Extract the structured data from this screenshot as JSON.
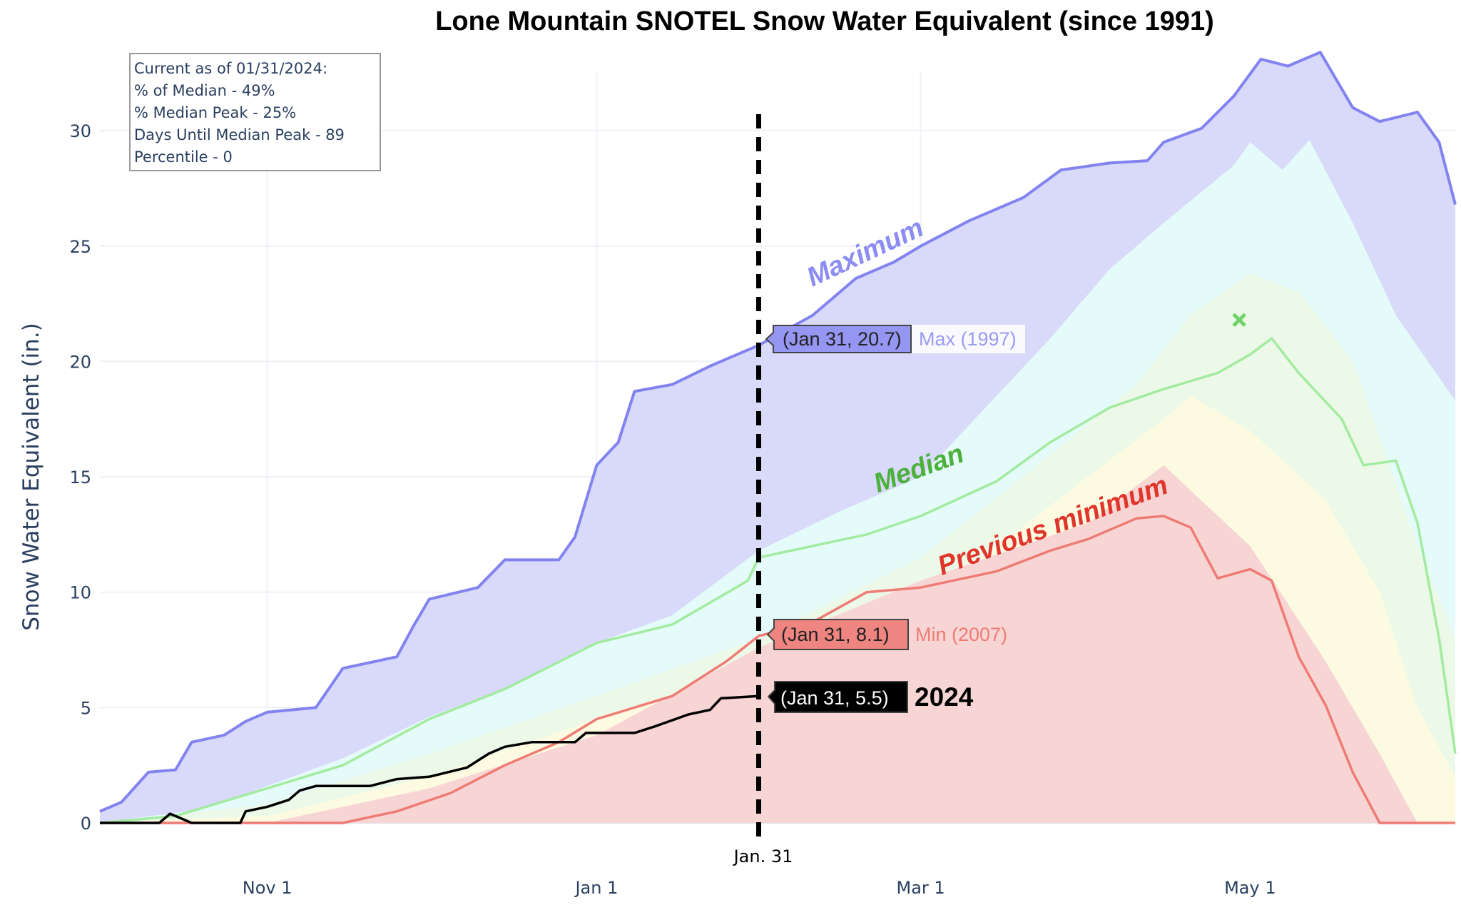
{
  "chart_data": {
    "type": "area",
    "title": "Lone Mountain SNOTEL Snow Water Equivalent (since 1991)",
    "xlabel": "",
    "ylabel": "Snow Water Equivalent (in.)",
    "xlim": [
      "2023-10-01",
      "2024-06-08"
    ],
    "ylim": [
      0,
      34
    ],
    "y_ticks": [
      0,
      5,
      10,
      15,
      20,
      25,
      30
    ],
    "x_ticks": [
      {
        "date": "2023-11-01",
        "label": "Nov 1"
      },
      {
        "date": "2024-01-01",
        "label": "Jan 1"
      },
      {
        "date": "2024-03-01",
        "label": "Mar 1"
      },
      {
        "date": "2024-05-01",
        "label": "May 1"
      }
    ],
    "grid": true,
    "current_marker": {
      "date": "2024-01-31",
      "label": "Jan. 31"
    },
    "info_box": [
      "Current as of 01/31/2024:",
      "% of Median - 49%",
      "% Median Peak - 25%",
      "Days Until Median Peak - 89",
      "Percentile - 0"
    ],
    "colors": {
      "max_line": "#8383f0",
      "max_fill": "#d9d9f9",
      "band_upper": "#e5fbfa",
      "band_mid": "#edf9e8",
      "band_lower": "#fcfbe1",
      "band_low": "#f8d5d5",
      "median_line": "#a3eba0",
      "min_line": "#ee7b74",
      "current_line": "#000000",
      "median_label": "#4cb03c",
      "min_label": "#e0352b"
    },
    "bands": [
      {
        "key": "upper",
        "points": [
          [
            "2023-10-01",
            0
          ],
          [
            "2023-10-20",
            0.6
          ],
          [
            "2023-11-01",
            1.6
          ],
          [
            "2023-11-15",
            2.8
          ],
          [
            "2023-12-01",
            4.6
          ],
          [
            "2023-12-15",
            5.8
          ],
          [
            "2024-01-01",
            7.8
          ],
          [
            "2024-01-15",
            9.0
          ],
          [
            "2024-01-31",
            11.8
          ],
          [
            "2024-02-15",
            13.5
          ],
          [
            "2024-03-01",
            15.0
          ],
          [
            "2024-03-15",
            18.5
          ],
          [
            "2024-03-25",
            21.0
          ],
          [
            "2024-04-05",
            24.0
          ],
          [
            "2024-04-15",
            26.0
          ],
          [
            "2024-04-28",
            28.5
          ],
          [
            "2024-05-01",
            29.5
          ],
          [
            "2024-05-07",
            28.3
          ],
          [
            "2024-05-12",
            29.6
          ],
          [
            "2024-05-20",
            26.0
          ],
          [
            "2024-05-28",
            22.0
          ],
          [
            "2024-06-08",
            18.3
          ]
        ]
      },
      {
        "key": "mid",
        "points": [
          [
            "2023-10-01",
            0
          ],
          [
            "2023-11-01",
            0.8
          ],
          [
            "2023-12-01",
            3.0
          ],
          [
            "2024-01-01",
            5.5
          ],
          [
            "2024-01-31",
            8.0
          ],
          [
            "2024-03-01",
            11.5
          ],
          [
            "2024-03-20",
            15.0
          ],
          [
            "2024-04-10",
            19.0
          ],
          [
            "2024-04-20",
            22.0
          ],
          [
            "2024-05-01",
            23.8
          ],
          [
            "2024-05-10",
            23.0
          ],
          [
            "2024-05-20",
            20.0
          ],
          [
            "2024-06-01",
            12.0
          ],
          [
            "2024-06-08",
            8.0
          ]
        ]
      },
      {
        "key": "lower",
        "points": [
          [
            "2023-10-01",
            0
          ],
          [
            "2023-11-01",
            0.3
          ],
          [
            "2023-12-01",
            2.0
          ],
          [
            "2024-01-01",
            4.5
          ],
          [
            "2024-01-31",
            6.5
          ],
          [
            "2024-03-01",
            9.5
          ],
          [
            "2024-04-01",
            15.0
          ],
          [
            "2024-04-15",
            17.5
          ],
          [
            "2024-04-20",
            18.5
          ],
          [
            "2024-05-01",
            17.0
          ],
          [
            "2024-05-15",
            14.0
          ],
          [
            "2024-05-25",
            10.0
          ],
          [
            "2024-06-01",
            5.0
          ],
          [
            "2024-06-08",
            2.0
          ]
        ]
      },
      {
        "key": "low",
        "points": [
          [
            "2023-10-01",
            0
          ],
          [
            "2023-11-01",
            0
          ],
          [
            "2023-12-01",
            1.5
          ],
          [
            "2024-01-01",
            3.8
          ],
          [
            "2024-01-31",
            7.6
          ],
          [
            "2024-03-01",
            10.5
          ],
          [
            "2024-04-01",
            13.0
          ],
          [
            "2024-04-15",
            15.5
          ],
          [
            "2024-05-01",
            12.0
          ],
          [
            "2024-05-15",
            7.0
          ],
          [
            "2024-05-25",
            3.0
          ],
          [
            "2024-06-01",
            0
          ],
          [
            "2024-06-08",
            0
          ]
        ]
      }
    ],
    "series": [
      {
        "key": "max",
        "name": "Maximum",
        "points": [
          [
            "2023-10-01",
            0.5
          ],
          [
            "2023-10-05",
            0.9
          ],
          [
            "2023-10-10",
            2.2
          ],
          [
            "2023-10-15",
            2.3
          ],
          [
            "2023-10-18",
            3.5
          ],
          [
            "2023-10-24",
            3.8
          ],
          [
            "2023-10-28",
            4.4
          ],
          [
            "2023-11-01",
            4.8
          ],
          [
            "2023-11-10",
            5.0
          ],
          [
            "2023-11-15",
            6.7
          ],
          [
            "2023-11-25",
            7.2
          ],
          [
            "2023-11-28",
            8.5
          ],
          [
            "2023-12-01",
            9.7
          ],
          [
            "2023-12-10",
            10.2
          ],
          [
            "2023-12-15",
            11.4
          ],
          [
            "2023-12-25",
            11.4
          ],
          [
            "2023-12-28",
            12.4
          ],
          [
            "2024-01-01",
            15.5
          ],
          [
            "2024-01-05",
            16.5
          ],
          [
            "2024-01-08",
            18.7
          ],
          [
            "2024-01-15",
            19.0
          ],
          [
            "2024-01-22",
            19.8
          ],
          [
            "2024-01-31",
            20.7
          ],
          [
            "2024-02-10",
            22.0
          ],
          [
            "2024-02-18",
            23.6
          ],
          [
            "2024-02-25",
            24.3
          ],
          [
            "2024-03-01",
            25.0
          ],
          [
            "2024-03-10",
            26.1
          ],
          [
            "2024-03-20",
            27.1
          ],
          [
            "2024-03-27",
            28.3
          ],
          [
            "2024-04-05",
            28.6
          ],
          [
            "2024-04-12",
            28.7
          ],
          [
            "2024-04-15",
            29.5
          ],
          [
            "2024-04-22",
            30.1
          ],
          [
            "2024-04-28",
            31.5
          ],
          [
            "2024-05-03",
            33.1
          ],
          [
            "2024-05-08",
            32.8
          ],
          [
            "2024-05-14",
            33.4
          ],
          [
            "2024-05-20",
            31.0
          ],
          [
            "2024-05-25",
            30.4
          ],
          [
            "2024-06-01",
            30.8
          ],
          [
            "2024-06-05",
            29.5
          ],
          [
            "2024-06-08",
            26.8
          ]
        ]
      },
      {
        "key": "median",
        "name": "Median",
        "points": [
          [
            "2023-10-01",
            0
          ],
          [
            "2023-10-15",
            0.3
          ],
          [
            "2023-11-01",
            1.5
          ],
          [
            "2023-11-15",
            2.5
          ],
          [
            "2023-12-01",
            4.5
          ],
          [
            "2023-12-15",
            5.8
          ],
          [
            "2024-01-01",
            7.8
          ],
          [
            "2024-01-15",
            8.6
          ],
          [
            "2024-01-29",
            10.5
          ],
          [
            "2024-01-31",
            11.5
          ],
          [
            "2024-02-10",
            12.0
          ],
          [
            "2024-02-20",
            12.5
          ],
          [
            "2024-03-01",
            13.3
          ],
          [
            "2024-03-15",
            14.8
          ],
          [
            "2024-03-25",
            16.5
          ],
          [
            "2024-04-05",
            18.0
          ],
          [
            "2024-04-15",
            18.8
          ],
          [
            "2024-04-25",
            19.5
          ],
          [
            "2024-05-01",
            20.3
          ],
          [
            "2024-05-05",
            21.0
          ],
          [
            "2024-05-10",
            19.5
          ],
          [
            "2024-05-18",
            17.5
          ],
          [
            "2024-05-22",
            15.5
          ],
          [
            "2024-05-28",
            15.7
          ],
          [
            "2024-06-01",
            13.0
          ],
          [
            "2024-06-05",
            8.0
          ],
          [
            "2024-06-08",
            3.0
          ]
        ]
      },
      {
        "key": "min",
        "name": "Previous minimum",
        "points": [
          [
            "2023-10-01",
            0
          ],
          [
            "2023-11-15",
            0
          ],
          [
            "2023-11-25",
            0.5
          ],
          [
            "2023-12-05",
            1.3
          ],
          [
            "2023-12-15",
            2.5
          ],
          [
            "2023-12-25",
            3.5
          ],
          [
            "2024-01-01",
            4.5
          ],
          [
            "2024-01-15",
            5.5
          ],
          [
            "2024-01-25",
            7.0
          ],
          [
            "2024-01-31",
            8.1
          ],
          [
            "2024-02-10",
            8.7
          ],
          [
            "2024-02-20",
            10.0
          ],
          [
            "2024-03-01",
            10.2
          ],
          [
            "2024-03-15",
            10.9
          ],
          [
            "2024-03-25",
            11.8
          ],
          [
            "2024-04-01",
            12.3
          ],
          [
            "2024-04-10",
            13.2
          ],
          [
            "2024-04-15",
            13.3
          ],
          [
            "2024-04-20",
            12.8
          ],
          [
            "2024-04-25",
            10.6
          ],
          [
            "2024-05-01",
            11.0
          ],
          [
            "2024-05-05",
            10.5
          ],
          [
            "2024-05-10",
            7.2
          ],
          [
            "2024-05-15",
            5.1
          ],
          [
            "2024-05-20",
            2.2
          ],
          [
            "2024-05-25",
            0
          ],
          [
            "2024-06-08",
            0
          ]
        ]
      },
      {
        "key": "current",
        "name": "2024",
        "points": [
          [
            "2023-10-01",
            0
          ],
          [
            "2023-10-12",
            0
          ],
          [
            "2023-10-14",
            0.4
          ],
          [
            "2023-10-16",
            0.2
          ],
          [
            "2023-10-18",
            0
          ],
          [
            "2023-10-27",
            0
          ],
          [
            "2023-10-28",
            0.5
          ],
          [
            "2023-11-01",
            0.7
          ],
          [
            "2023-11-05",
            1.0
          ],
          [
            "2023-11-07",
            1.4
          ],
          [
            "2023-11-10",
            1.6
          ],
          [
            "2023-11-20",
            1.6
          ],
          [
            "2023-11-25",
            1.9
          ],
          [
            "2023-12-01",
            2.0
          ],
          [
            "2023-12-08",
            2.4
          ],
          [
            "2023-12-12",
            3.0
          ],
          [
            "2023-12-15",
            3.3
          ],
          [
            "2023-12-20",
            3.5
          ],
          [
            "2023-12-28",
            3.5
          ],
          [
            "2023-12-30",
            3.9
          ],
          [
            "2024-01-08",
            3.9
          ],
          [
            "2024-01-12",
            4.2
          ],
          [
            "2024-01-18",
            4.7
          ],
          [
            "2024-01-22",
            4.9
          ],
          [
            "2024-01-24",
            5.4
          ],
          [
            "2024-01-31",
            5.5
          ]
        ]
      }
    ],
    "median_peak_marker": {
      "date": "2024-04-29",
      "value": 21.8,
      "symbol": "x"
    },
    "annotations": {
      "maximum": "Maximum",
      "median": "Median",
      "previous_minimum": "Previous minimum",
      "current_year": "2024"
    },
    "hover_labels": {
      "max": {
        "value": "(Jan 31, 20.7)",
        "label": "Max (1997)"
      },
      "min": {
        "value": "(Jan 31, 8.1)",
        "label": "Min (2007)"
      },
      "current": {
        "value": "(Jan 31, 5.5)"
      }
    }
  }
}
